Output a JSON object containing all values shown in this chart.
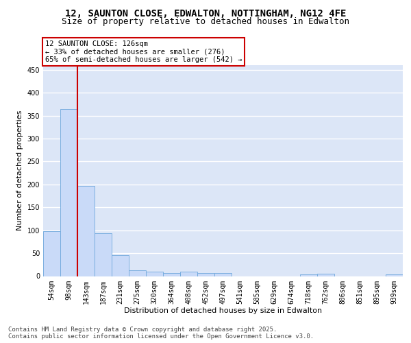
{
  "title_line1": "12, SAUNTON CLOSE, EDWALTON, NOTTINGHAM, NG12 4FE",
  "title_line2": "Size of property relative to detached houses in Edwalton",
  "xlabel": "Distribution of detached houses by size in Edwalton",
  "ylabel": "Number of detached properties",
  "bar_color": "#c9daf8",
  "bar_edge_color": "#6fa8dc",
  "annotation_box_text": "12 SAUNTON CLOSE: 126sqm\n← 33% of detached houses are smaller (276)\n65% of semi-detached houses are larger (542) →",
  "annotation_box_color": "#cc0000",
  "vline_color": "#cc0000",
  "vline_x": 1.5,
  "categories": [
    "54sqm",
    "98sqm",
    "143sqm",
    "187sqm",
    "231sqm",
    "275sqm",
    "320sqm",
    "364sqm",
    "408sqm",
    "452sqm",
    "497sqm",
    "541sqm",
    "585sqm",
    "629sqm",
    "674sqm",
    "718sqm",
    "762sqm",
    "806sqm",
    "851sqm",
    "895sqm",
    "939sqm"
  ],
  "values": [
    98,
    365,
    196,
    93,
    45,
    13,
    10,
    7,
    10,
    6,
    6,
    0,
    0,
    0,
    0,
    4,
    5,
    0,
    0,
    0,
    3
  ],
  "ylim": [
    0,
    460
  ],
  "yticks": [
    0,
    50,
    100,
    150,
    200,
    250,
    300,
    350,
    400,
    450
  ],
  "background_color": "#dce6f7",
  "grid_color": "#ffffff",
  "footer_text": "Contains HM Land Registry data © Crown copyright and database right 2025.\nContains public sector information licensed under the Open Government Licence v3.0.",
  "title_fontsize": 10,
  "subtitle_fontsize": 9,
  "axis_label_fontsize": 8,
  "tick_fontsize": 7,
  "footer_fontsize": 6.5,
  "ann_fontsize": 7.5
}
